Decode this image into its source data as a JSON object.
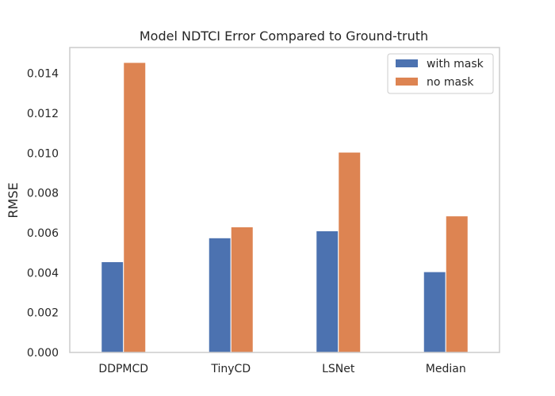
{
  "chart_data": {
    "type": "bar",
    "title": "Model NDTCI Error Compared to Ground-truth",
    "xlabel": "",
    "ylabel": "RMSE",
    "categories": [
      "DDPMCD",
      "TinyCD",
      "LSNet",
      "Median"
    ],
    "series": [
      {
        "name": "with mask",
        "values": [
          0.00455,
          0.00575,
          0.0061,
          0.00405
        ],
        "color": "#4c72b0"
      },
      {
        "name": "no mask",
        "values": [
          0.01455,
          0.0063,
          0.01005,
          0.00685
        ],
        "color": "#dd8452"
      }
    ],
    "ylim": [
      0,
      0.0153
    ],
    "yticks": [
      "0.000",
      "0.002",
      "0.004",
      "0.006",
      "0.008",
      "0.010",
      "0.012",
      "0.014"
    ],
    "grid": false,
    "legend_position": "top-right"
  }
}
